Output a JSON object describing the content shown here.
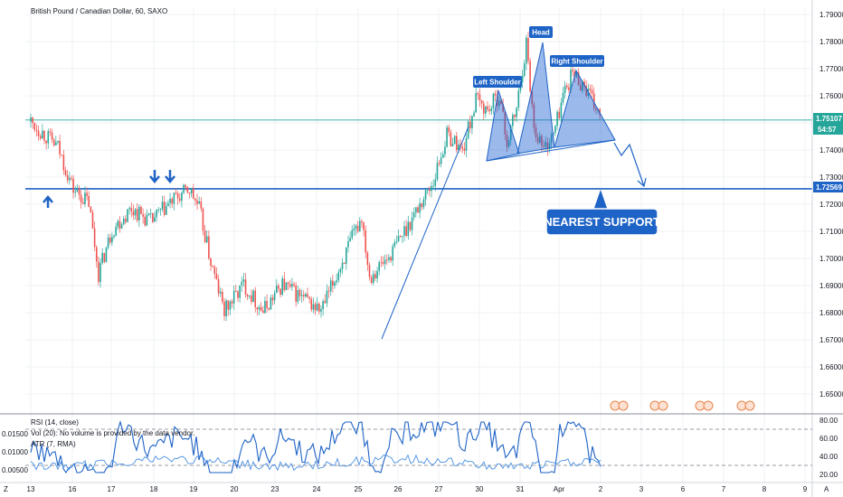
{
  "header": {
    "symbol_title": "British Pound / Canadian Dollar, 60, SAXO"
  },
  "chart_data": [
    {
      "type": "candlestick",
      "title": "British Pound / Canadian Dollar, 60, SAXO",
      "y_ticks": [
        "1.79000",
        "1.78000",
        "1.77000",
        "1.76000",
        "1.75000",
        "1.74000",
        "1.73000",
        "1.72000",
        "1.71000",
        "1.70000",
        "1.69000",
        "1.68000",
        "1.67000",
        "1.66000",
        "1.65000"
      ],
      "ylim": [
        1.644,
        1.794
      ],
      "x_ticks": [
        "13",
        "16",
        "17",
        "18",
        "19",
        "20",
        "23",
        "24",
        "25",
        "26",
        "27",
        "30",
        "31",
        "Apr",
        "2",
        "3",
        "6",
        "7",
        "8",
        "9"
      ],
      "grid": true,
      "current_price": "1.75107",
      "countdown": "54:57",
      "support_price": "1.72569",
      "current_price_value": 1.75107,
      "support_price_value": 1.72569,
      "annotations": {
        "left_shoulder": "Left Shoulder",
        "head": "Head",
        "right_shoulder": "Right Shoulder",
        "nearest_support": "NEAREST SUPPORT"
      },
      "series": [
        {
          "path": [
            [
              0,
              1.7505
            ],
            [
              1.4,
              1.741
            ],
            [
              2.2,
              1.7255
            ],
            [
              3,
              1.7205
            ],
            [
              3.5,
              1.6945
            ],
            [
              4.2,
              1.7105
            ],
            [
              5.2,
              1.7185
            ],
            [
              6.2,
              1.7135
            ],
            [
              7.2,
              1.7205
            ],
            [
              8.2,
              1.7255
            ],
            [
              8.7,
              1.7185
            ],
            [
              9.3,
              1.6985
            ],
            [
              10.0,
              1.6805
            ],
            [
              11.0,
              1.6905
            ],
            [
              12.0,
              1.6805
            ],
            [
              13.0,
              1.6905
            ],
            [
              14.0,
              1.6855
            ],
            [
              15.0,
              1.6805
            ],
            [
              16.2,
              1.7005
            ],
            [
              17.1,
              1.7155
            ],
            [
              17.5,
              1.6935
            ],
            [
              18.5,
              1.7005
            ],
            [
              19.5,
              1.7125
            ],
            [
              20.8,
              1.7285
            ],
            [
              21.5,
              1.7455
            ],
            [
              22.0,
              1.7425
            ],
            [
              22.3,
              1.7395
            ],
            [
              23.0,
              1.7585
            ],
            [
              23.6,
              1.7545
            ],
            [
              24.2,
              1.7605
            ],
            [
              24.6,
              1.7425
            ],
            [
              25.1,
              1.7555
            ],
            [
              25.6,
              1.7795
            ],
            [
              26.0,
              1.7485
            ],
            [
              26.5,
              1.7405
            ],
            [
              27.0,
              1.7455
            ],
            [
              27.5,
              1.7605
            ],
            [
              28.0,
              1.7685
            ],
            [
              28.7,
              1.7625
            ],
            [
              29.5,
              1.7505
            ]
          ]
        }
      ],
      "indicators": {
        "rsi_label": "RSI (14, close)",
        "vol_label": "Vol (20): No volume is provided by the data vendor.",
        "atr_label": "ATR (7, RMA)",
        "rsi_ticks": [
          "80.00",
          "60.00",
          "40.00",
          "20.00"
        ],
        "atr_ticks": [
          "0.01500",
          "0.01000",
          "0.00500"
        ],
        "rsi_band_upper": 70,
        "rsi_band_lower": 30
      }
    }
  ]
}
